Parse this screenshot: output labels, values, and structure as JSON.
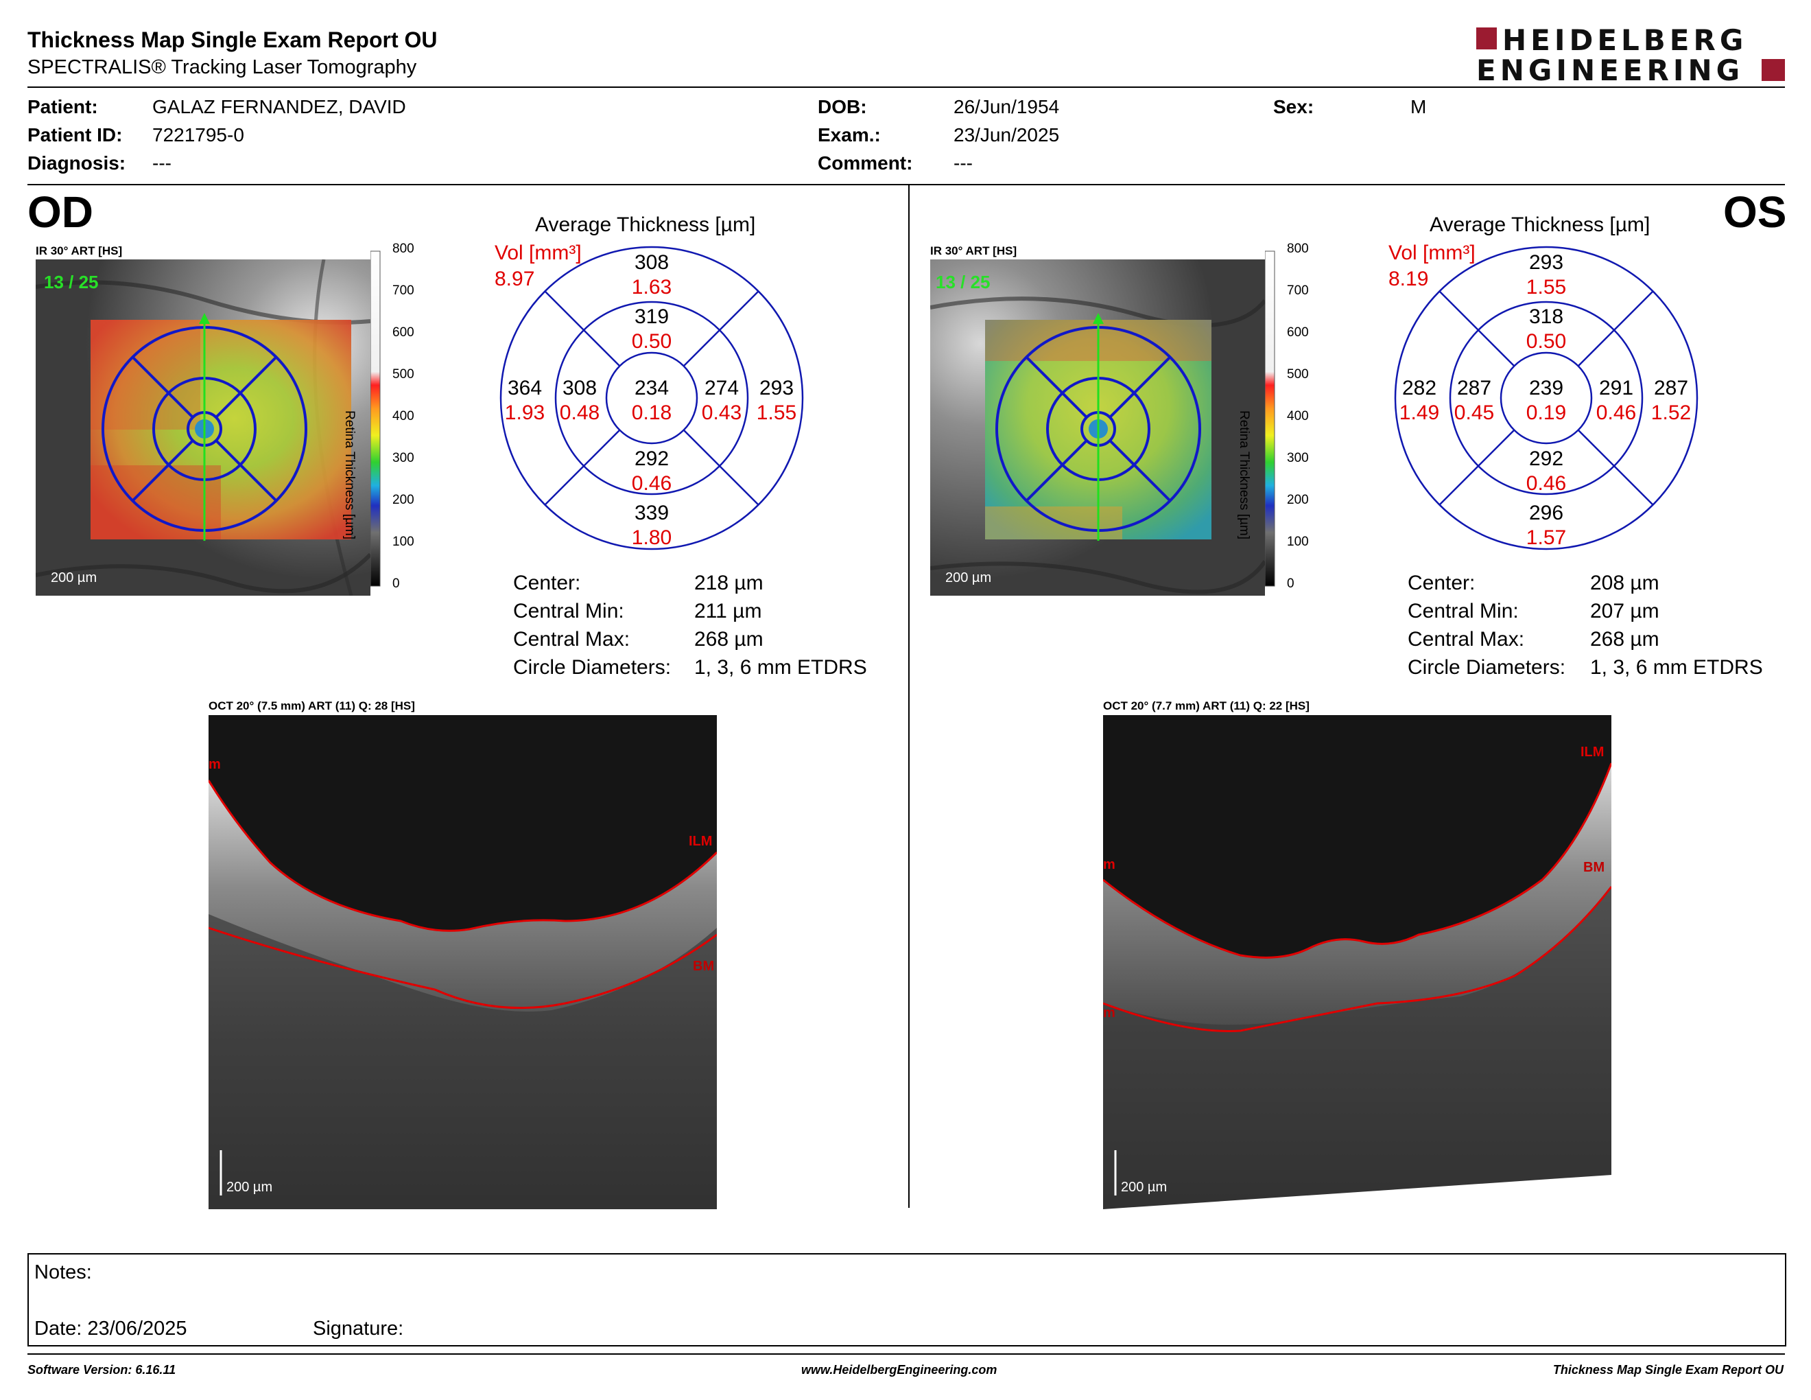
{
  "header": {
    "title": "Thickness Map Single Exam Report OU",
    "subtitle": "SPECTRALIS® Tracking Laser Tomography",
    "logo_line1": "HEIDELBERG",
    "logo_line2": "ENGINEERING",
    "brand_color": "#9b1b30"
  },
  "patient": {
    "patient_label": "Patient:",
    "patient_value": "GALAZ FERNANDEZ, DAVID",
    "id_label": "Patient ID:",
    "id_value": "7221795-0",
    "diagnosis_label": "Diagnosis:",
    "diagnosis_value": "---",
    "dob_label": "DOB:",
    "dob_value": "26/Jun/1954",
    "exam_label": "Exam.:",
    "exam_value": "23/Jun/2025",
    "comment_label": "Comment:",
    "comment_value": "---",
    "sex_label": "Sex:",
    "sex_value": "M"
  },
  "od": {
    "eye": "OD",
    "ir_label": "IR 30° ART [HS]",
    "frame": "13 / 25",
    "scalebar": "200 µm",
    "colorbar_ticks": [
      "800",
      "700",
      "600",
      "500",
      "400",
      "300",
      "200",
      "100",
      "0"
    ],
    "colorbar_title": "Retina  Thickness [µm]",
    "avg_title": "Average Thickness [µm]",
    "vol_label": "Vol [mm³]",
    "vol_value": "8.97",
    "sectors": {
      "sup_outer_t": "308",
      "sup_outer_v": "1.63",
      "sup_inner_t": "319",
      "sup_inner_v": "0.50",
      "temp_outer_t": "364",
      "temp_outer_v": "1.93",
      "temp_inner_t": "308",
      "temp_inner_v": "0.48",
      "center_t": "234",
      "center_v": "0.18",
      "nas_inner_t": "274",
      "nas_inner_v": "0.43",
      "nas_outer_t": "293",
      "nas_outer_v": "1.55",
      "inf_inner_t": "292",
      "inf_inner_v": "0.46",
      "inf_outer_t": "339",
      "inf_outer_v": "1.80"
    },
    "stats": {
      "center_label": "Center:",
      "center_value": "218 µm",
      "min_label": "Central Min:",
      "min_value": "211 µm",
      "max_label": "Central Max:",
      "max_value": "268 µm",
      "diam_label": "Circle Diameters:",
      "diam_value": "1, 3, 6 mm ETDRS"
    },
    "oct_label": "OCT 20° (7.5 mm) ART (11) Q: 28 [HS]",
    "oct_scalebar": "200 µm",
    "layer_ilm": "ILM",
    "layer_bm": "BM",
    "layer_edge": "m"
  },
  "os": {
    "eye": "OS",
    "ir_label": "IR 30° ART [HS]",
    "frame": "13 / 25",
    "scalebar": "200 µm",
    "colorbar_ticks": [
      "800",
      "700",
      "600",
      "500",
      "400",
      "300",
      "200",
      "100",
      "0"
    ],
    "colorbar_title": "Retina  Thickness [µm]",
    "avg_title": "Average Thickness [µm]",
    "vol_label": "Vol [mm³]",
    "vol_value": "8.19",
    "sectors": {
      "sup_outer_t": "293",
      "sup_outer_v": "1.55",
      "sup_inner_t": "318",
      "sup_inner_v": "0.50",
      "temp_outer_t": "282",
      "temp_outer_v": "1.49",
      "temp_inner_t": "287",
      "temp_inner_v": "0.45",
      "center_t": "239",
      "center_v": "0.19",
      "nas_inner_t": "291",
      "nas_inner_v": "0.46",
      "nas_outer_t": "287",
      "nas_outer_v": "1.52",
      "inf_inner_t": "292",
      "inf_inner_v": "0.46",
      "inf_outer_t": "296",
      "inf_outer_v": "1.57"
    },
    "stats": {
      "center_label": "Center:",
      "center_value": "208 µm",
      "min_label": "Central Min:",
      "min_value": "207 µm",
      "max_label": "Central Max:",
      "max_value": "268 µm",
      "diam_label": "Circle Diameters:",
      "diam_value": "1, 3, 6 mm ETDRS"
    },
    "oct_label": "OCT 20° (7.7 mm) ART (11) Q: 22 [HS]",
    "oct_scalebar": "200 µm",
    "layer_ilm": "ILM",
    "layer_bm": "BM",
    "layer_edge": "m"
  },
  "notes": {
    "notes_label": "Notes:",
    "date_label": "Date: 23/06/2025",
    "signature_label": "Signature:"
  },
  "footer": {
    "software": "Software Version: 6.16.11",
    "website": "www.HeidelbergEngineering.com",
    "report_name": "Thickness Map Single Exam Report OU"
  }
}
